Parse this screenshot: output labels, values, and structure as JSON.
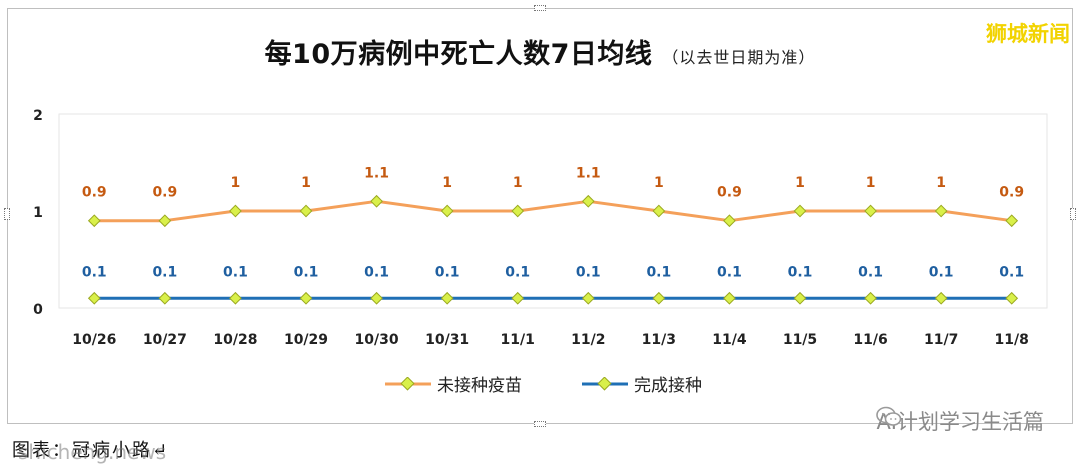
{
  "title": "每10万病例中死亡人数7日均线",
  "subtitle": "（以去世日期为准）",
  "brand": "狮城新闻",
  "source_text": "图表：冠病小路↵",
  "watermark_left": "shicheng.news",
  "watermark_right": "AI计划学习生活篇",
  "colors": {
    "unvaccinated": "#f4a05a",
    "vaccinated": "#1f6fb5",
    "marker_fill": "#d9f04a",
    "marker_stroke": "#9aa820",
    "gridline": "#e6e6e6",
    "label_unvaccinated": "#c55a11",
    "label_vaccinated": "#1f5fa0"
  },
  "chart_data": {
    "type": "line",
    "title": "每10万病例中死亡人数7日均线",
    "categories": [
      "10/26",
      "10/27",
      "10/28",
      "10/29",
      "10/30",
      "10/31",
      "11/1",
      "11/2",
      "11/3",
      "11/4",
      "11/5",
      "11/6",
      "11/7",
      "11/8"
    ],
    "series": [
      {
        "name": "未接种疫苗",
        "values": [
          0.9,
          0.9,
          1,
          1,
          1.1,
          1,
          1,
          1.1,
          1,
          0.9,
          1,
          1,
          1,
          0.9
        ],
        "labels": [
          "0.9",
          "0.9",
          "1",
          "1",
          "1.1",
          "1",
          "1",
          "1.1",
          "1",
          "0.9",
          "1",
          "1",
          "1",
          "0.9"
        ]
      },
      {
        "name": "完成接种",
        "values": [
          0.1,
          0.1,
          0.1,
          0.1,
          0.1,
          0.1,
          0.1,
          0.1,
          0.1,
          0.1,
          0.1,
          0.1,
          0.1,
          0.1
        ],
        "labels": [
          "0.1",
          "0.1",
          "0.1",
          "0.1",
          "0.1",
          "0.1",
          "0.1",
          "0.1",
          "0.1",
          "0.1",
          "0.1",
          "0.1",
          "0.1",
          "0.1"
        ]
      }
    ],
    "yticks": [
      "0",
      "1",
      "2"
    ],
    "ylim": [
      0,
      2
    ],
    "xlabel": "",
    "ylabel": "",
    "grid": false,
    "legend_position": "bottom"
  }
}
